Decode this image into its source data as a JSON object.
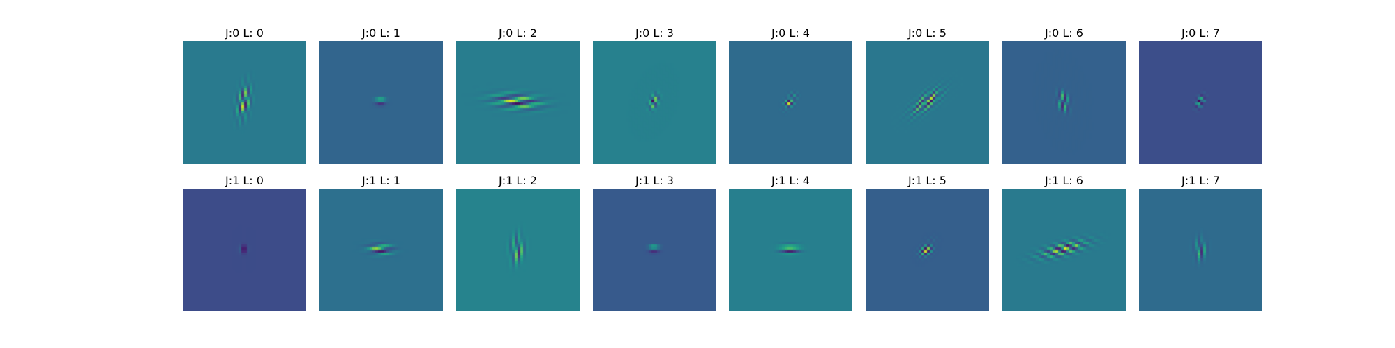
{
  "figure": {
    "rows": [
      [
        {
          "title": "J:0 L: 0",
          "background": "#2d7d8e",
          "angle_deg": 100,
          "sigma_major": 15,
          "sigma_minor": 6,
          "wavelength": 7,
          "phase": 0
        },
        {
          "title": "J:0 L: 1",
          "background": "#35678d",
          "angle_deg": 0,
          "sigma_major": 5,
          "sigma_minor": 3.5,
          "wavelength": 5,
          "phase": 0
        },
        {
          "title": "J:0 L: 2",
          "background": "#2c7f8e",
          "angle_deg": 5,
          "sigma_major": 22,
          "sigma_minor": 7,
          "wavelength": 6,
          "phase": 0
        },
        {
          "title": "J:0 L: 3",
          "background": "#2b818e",
          "angle_deg": 110,
          "sigma_major": 7,
          "sigma_minor": 4,
          "wavelength": 6,
          "phase": 1.2
        },
        {
          "title": "J:0 L: 4",
          "background": "#336d8e",
          "angle_deg": 125,
          "sigma_major": 7,
          "sigma_minor": 4,
          "wavelength": 6,
          "phase": 0.6
        },
        {
          "title": "J:0 L: 5",
          "background": "#2a788e",
          "angle_deg": 140,
          "sigma_major": 16,
          "sigma_minor": 6.5,
          "wavelength": 7,
          "phase": 0
        },
        {
          "title": "J:0 L: 6",
          "background": "#35628d",
          "angle_deg": 80,
          "sigma_major": 9,
          "sigma_minor": 5,
          "wavelength": 7,
          "phase": 0.4
        },
        {
          "title": "J:0 L: 7",
          "background": "#3c4e8a",
          "angle_deg": 115,
          "sigma_major": 6,
          "sigma_minor": 3.5,
          "wavelength": 5,
          "phase": 0.9
        }
      ],
      [
        {
          "title": "J:1 L: 0",
          "background": "#3d4c89",
          "angle_deg": 90,
          "sigma_major": 4,
          "sigma_minor": 3,
          "wavelength": 5,
          "phase": 0.5
        },
        {
          "title": "J:1 L: 1",
          "background": "#31708e",
          "angle_deg": 5,
          "sigma_major": 11,
          "sigma_minor": 5,
          "wavelength": 6,
          "phase": 0
        },
        {
          "title": "J:1 L: 2",
          "background": "#26838e",
          "angle_deg": 95,
          "sigma_major": 12,
          "sigma_minor": 6,
          "wavelength": 7,
          "phase": 0
        },
        {
          "title": "J:1 L: 3",
          "background": "#375b8d",
          "angle_deg": 0,
          "sigma_major": 5,
          "sigma_minor": 3.5,
          "wavelength": 5,
          "phase": 0
        },
        {
          "title": "J:1 L: 4",
          "background": "#287f8e",
          "angle_deg": 0,
          "sigma_major": 9,
          "sigma_minor": 4.5,
          "wavelength": 6,
          "phase": 0
        },
        {
          "title": "J:1 L: 5",
          "background": "#365f8d",
          "angle_deg": 130,
          "sigma_major": 8,
          "sigma_minor": 4.5,
          "wavelength": 6,
          "phase": 0.7
        },
        {
          "title": "J:1 L: 6",
          "background": "#2a7b8e",
          "angle_deg": 165,
          "sigma_major": 22,
          "sigma_minor": 6,
          "wavelength": 6,
          "phase": 0
        },
        {
          "title": "J:1 L: 7",
          "background": "#306b8e",
          "angle_deg": 95,
          "sigma_major": 9,
          "sigma_minor": 5,
          "wavelength": 7,
          "phase": 0
        }
      ]
    ]
  }
}
